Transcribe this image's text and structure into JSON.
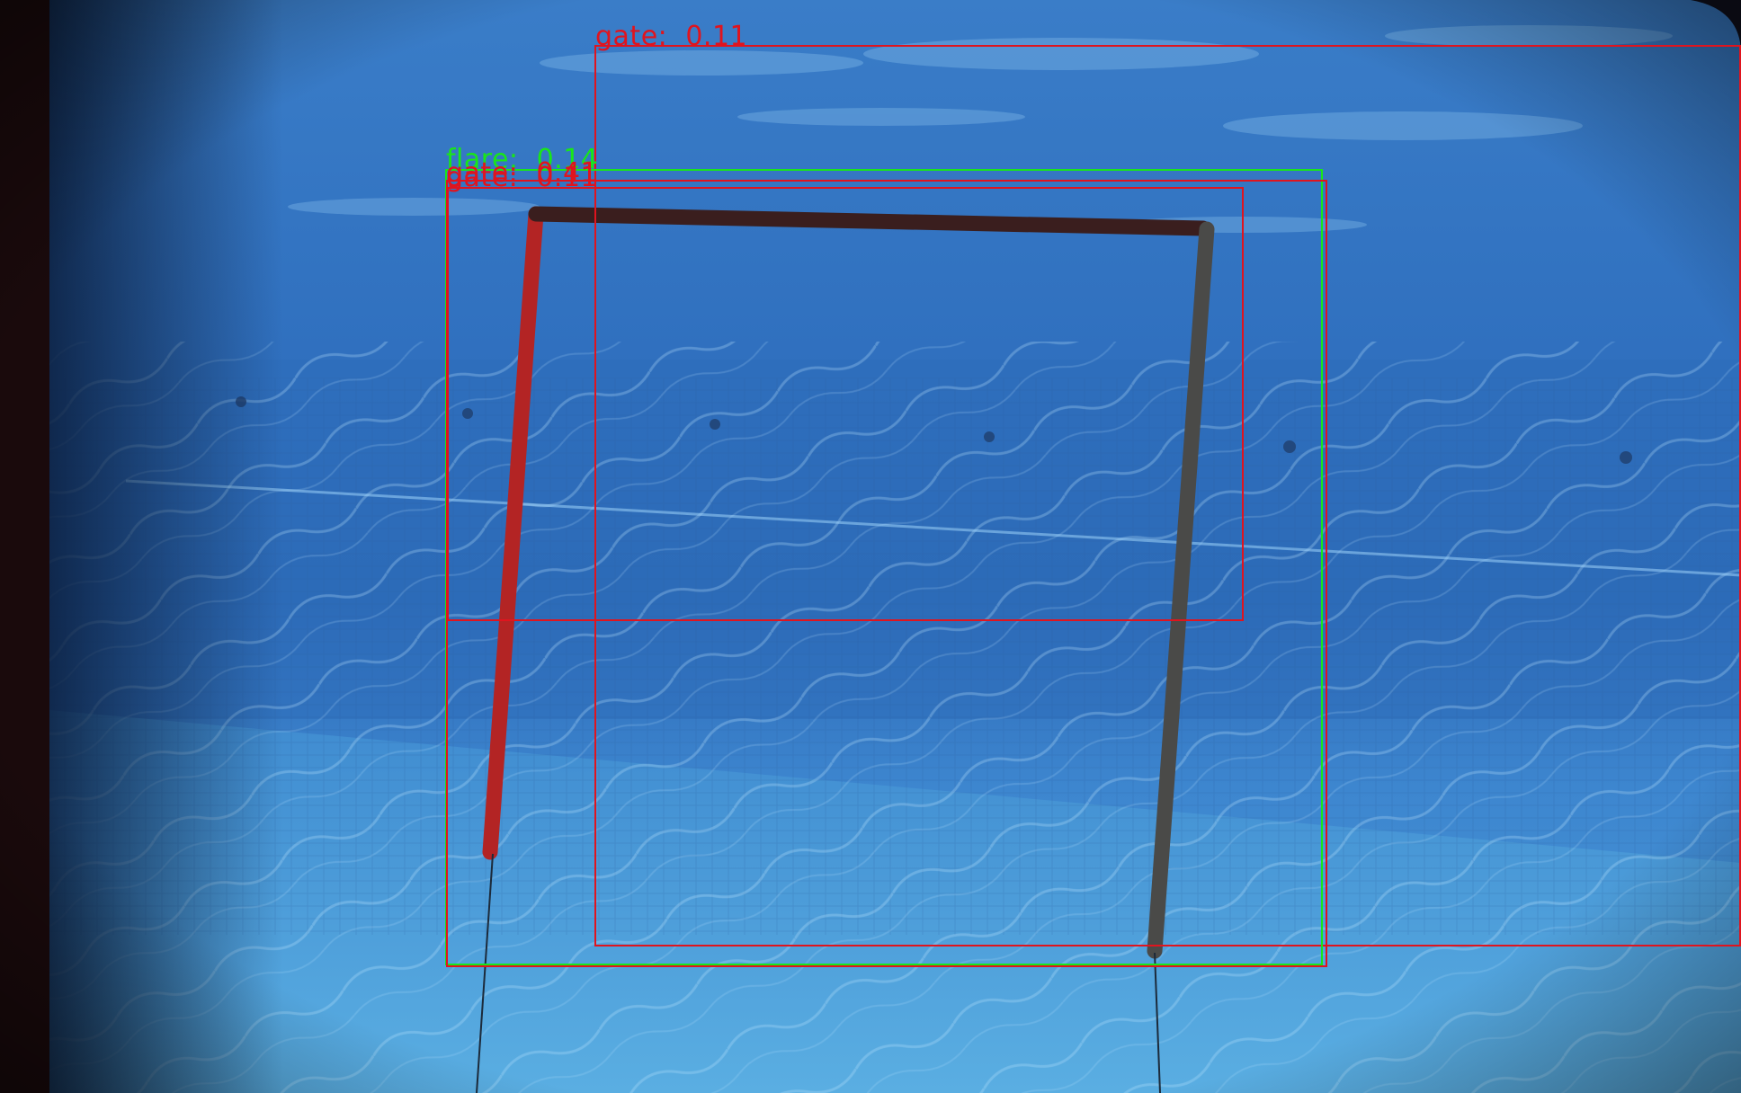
{
  "colors": {
    "gate": "#e0141e",
    "flare": "#19e619"
  },
  "detections": [
    {
      "id": "gate-1",
      "label": "gate:  0.11",
      "class": "gate"
    },
    {
      "id": "flare-1",
      "label": "flare:  0.14",
      "class": "flare"
    },
    {
      "id": "gate-2",
      "label": "gate:  0.41",
      "class": "gate"
    },
    {
      "id": "gate-3",
      "label": "gate:  0.11",
      "class": "gate"
    }
  ]
}
